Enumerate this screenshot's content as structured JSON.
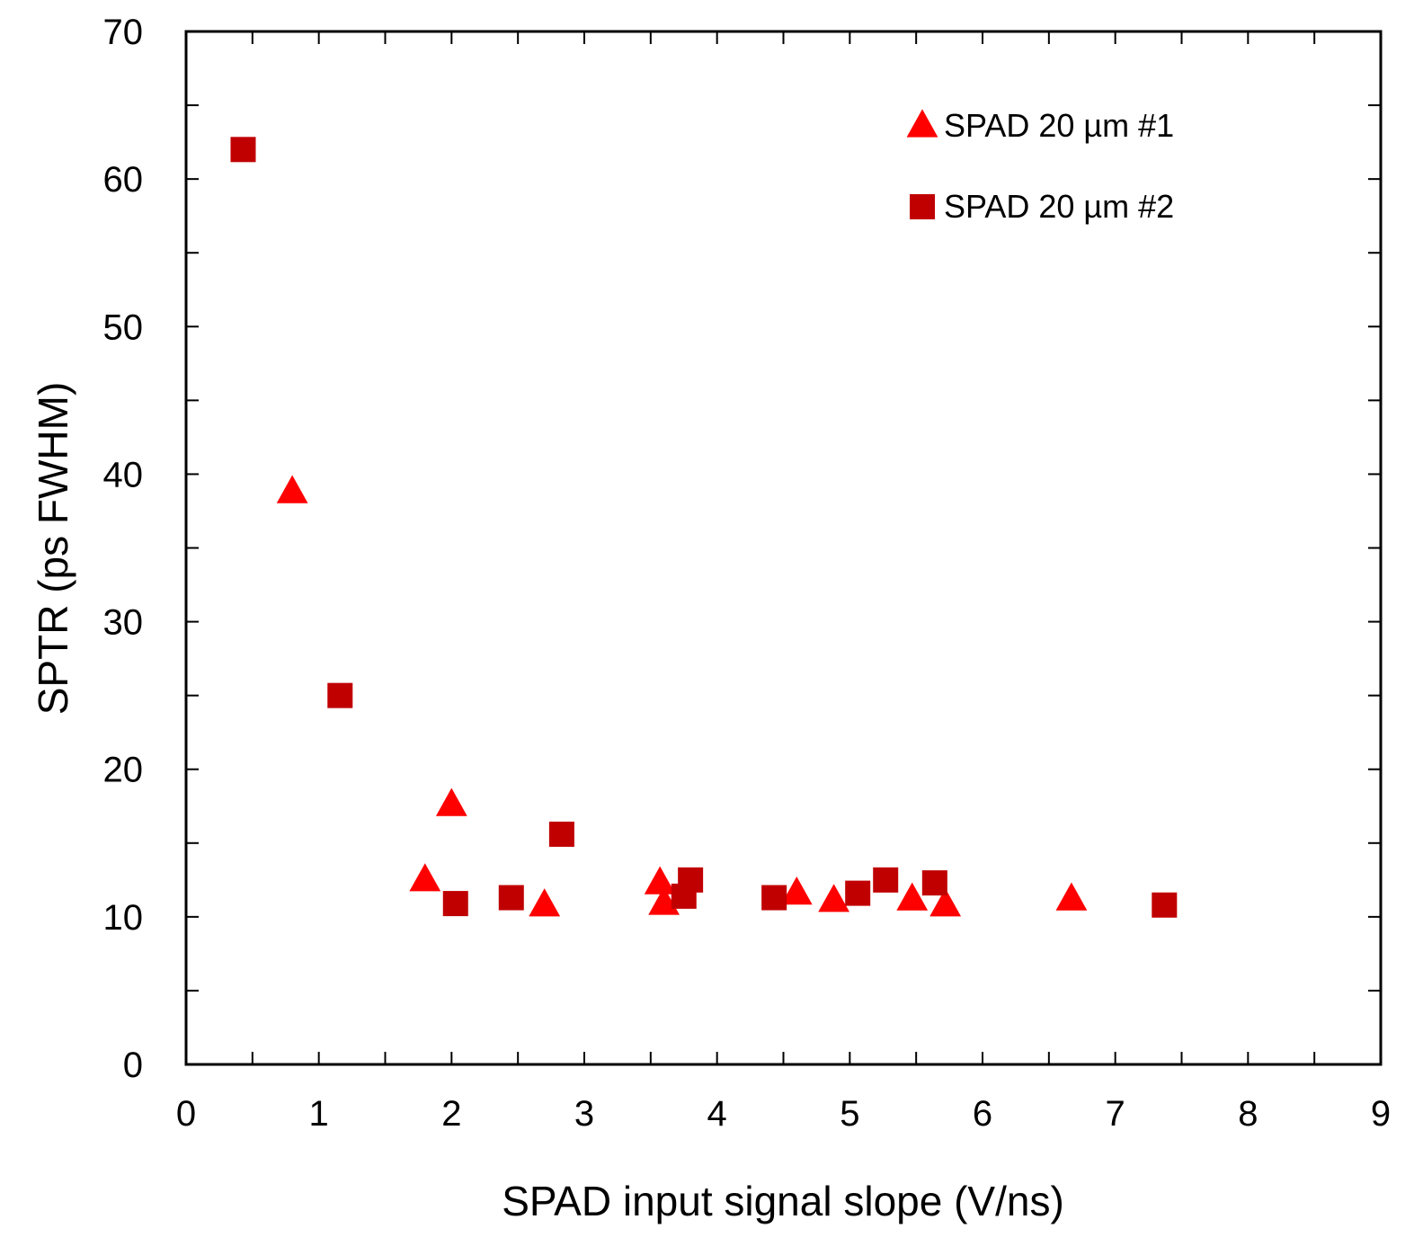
{
  "chart_data": {
    "type": "scatter",
    "title": "",
    "xlabel": "SPAD input signal slope (V/ns)",
    "ylabel": "SPTR (ps FWHM)",
    "xlim": [
      0,
      9
    ],
    "ylim": [
      0,
      70
    ],
    "xticks": [
      0,
      1,
      2,
      3,
      4,
      5,
      6,
      7,
      8,
      9
    ],
    "yticks": [
      0,
      10,
      20,
      30,
      40,
      50,
      60,
      70
    ],
    "grid": false,
    "legend_position": "top-right",
    "series": [
      {
        "name": "SPAD 20 µm #1",
        "marker": "triangle",
        "color": "#ff0000",
        "x": [
          0.8,
          1.8,
          2.0,
          2.7,
          3.57,
          3.6,
          4.6,
          4.88,
          5.47,
          5.72,
          6.67
        ],
        "y": [
          38.8,
          12.5,
          17.6,
          10.8,
          12.3,
          10.9,
          11.6,
          11.1,
          11.2,
          10.8,
          11.2
        ]
      },
      {
        "name": "SPAD 20 µm #2",
        "marker": "square",
        "color": "#c00000",
        "x": [
          0.43,
          1.16,
          2.03,
          2.45,
          2.83,
          3.75,
          3.8,
          4.43,
          5.06,
          5.27,
          5.64,
          7.37
        ],
        "y": [
          62.0,
          25.0,
          10.9,
          11.3,
          15.6,
          11.4,
          12.5,
          11.3,
          11.6,
          12.5,
          12.3,
          10.8
        ]
      }
    ]
  }
}
